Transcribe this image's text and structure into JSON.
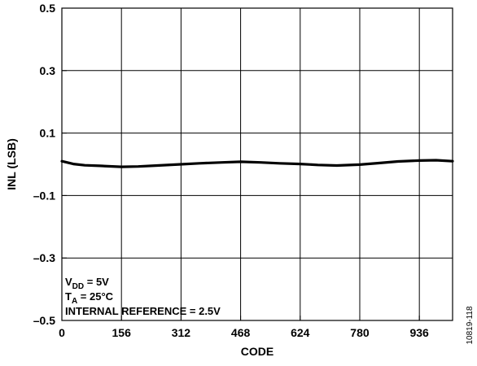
{
  "chart_data": {
    "type": "line",
    "xlabel": "CODE",
    "ylabel": "INL (LSB)",
    "xlim": [
      0,
      1023
    ],
    "ylim": [
      -0.5,
      0.5
    ],
    "x_ticks": [
      0,
      156,
      312,
      468,
      624,
      780,
      936
    ],
    "x_tick_labels": [
      "0",
      "156",
      "312",
      "468",
      "624",
      "780",
      "936"
    ],
    "y_ticks": [
      0.5,
      0.3,
      0.1,
      -0.1,
      -0.3,
      -0.5
    ],
    "y_tick_labels": [
      "0.5",
      "0.3",
      "0.1",
      "–0.1",
      "–0.3",
      "–0.5"
    ],
    "grid": true,
    "series": [
      {
        "x": [
          0,
          30,
          60,
          100,
          156,
          200,
          250,
          312,
          360,
          420,
          468,
          520,
          570,
          624,
          670,
          720,
          780,
          830,
          880,
          936,
          980,
          1023
        ],
        "values": [
          0.01,
          0.001,
          -0.003,
          -0.005,
          -0.008,
          -0.007,
          -0.004,
          0.0,
          0.003,
          0.006,
          0.008,
          0.006,
          0.003,
          0.001,
          -0.002,
          -0.004,
          -0.001,
          0.004,
          0.009,
          0.012,
          0.013,
          0.01
        ]
      }
    ],
    "annotation": {
      "vdd_main": "V",
      "vdd_sub": "DD",
      "vdd_value": " = 5V",
      "ta_main": "T",
      "ta_sub": "A",
      "ta_value": " = 25°C",
      "reference": "INTERNAL REFERENCE = 2.5V"
    },
    "figure_id": "10819-118"
  }
}
